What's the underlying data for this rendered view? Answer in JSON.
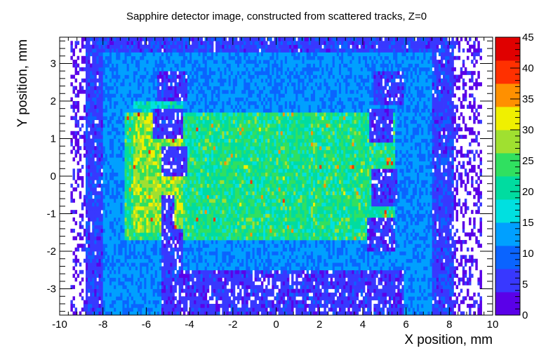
{
  "chart_data": {
    "type": "heatmap",
    "title": "Sapphire detector image, constructed from scattered tracks, Z=0",
    "xlabel": "X position, mm",
    "ylabel": "Y position, mm",
    "xlim": [
      -10,
      10
    ],
    "ylim": [
      -3.7,
      3.7
    ],
    "x_ticks": [
      "-10",
      "-8",
      "-6",
      "-4",
      "-2",
      "0",
      "2",
      "4",
      "6",
      "8",
      "10"
    ],
    "y_ticks": [
      "-3",
      "-2",
      "-1",
      "0",
      "1",
      "2",
      "3"
    ],
    "zlim": [
      0,
      45
    ],
    "z_ticks": [
      "0",
      "5",
      "10",
      "15",
      "20",
      "25",
      "30",
      "35",
      "40",
      "45"
    ],
    "bins": {
      "nx": 200,
      "ny": 74
    },
    "data_support_x": [
      -9.5,
      9.5
    ],
    "bands": [
      {
        "region": "outer halo",
        "x": [
          -9.5,
          9.5
        ],
        "y": [
          -3.7,
          3.7
        ],
        "counts": [
          0,
          3
        ]
      },
      {
        "region": "outer frame",
        "x": [
          -8.8,
          8.2
        ],
        "y": [
          -3.7,
          3.7
        ],
        "counts": [
          4,
          9
        ]
      },
      {
        "region": "ring",
        "x": [
          -8.0,
          7.2
        ],
        "y": [
          -3.7,
          3.3
        ],
        "counts": [
          10,
          16
        ]
      },
      {
        "region": "central plateau",
        "x": [
          -7.0,
          5.5
        ],
        "y": [
          -1.7,
          1.7
        ],
        "counts": [
          18,
          28
        ]
      },
      {
        "region": "hot spots",
        "x": [
          -6.6,
          -4.3
        ],
        "y": [
          -1.5,
          2.0
        ],
        "counts": [
          30,
          40
        ]
      }
    ],
    "masked_rectangles": [
      {
        "x": [
          -5.5,
          -4.1
        ],
        "y": [
          2.0,
          2.75
        ]
      },
      {
        "x": [
          -5.7,
          -4.3
        ],
        "y": [
          1.0,
          1.75
        ]
      },
      {
        "x": [
          -5.3,
          -4.1
        ],
        "y": [
          0.0,
          0.75
        ]
      },
      {
        "x": [
          -5.3,
          -4.7
        ],
        "y": [
          -1.6,
          -0.5
        ]
      },
      {
        "x": [
          -5.3,
          -4.3
        ],
        "y": [
          -2.5,
          -1.4
        ]
      },
      {
        "x": [
          -5.3,
          5.9
        ],
        "y": [
          -3.7,
          -2.5
        ]
      },
      {
        "x": [
          4.5,
          5.9
        ],
        "y": [
          1.9,
          2.8
        ]
      },
      {
        "x": [
          4.3,
          5.4
        ],
        "y": [
          0.95,
          1.8
        ]
      },
      {
        "x": [
          4.4,
          5.6
        ],
        "y": [
          -0.8,
          0.15
        ]
      },
      {
        "x": [
          4.2,
          5.5
        ],
        "y": [
          -2.0,
          -1.1
        ]
      }
    ],
    "palette": [
      "#5a00e8",
      "#3838ff",
      "#0a64ff",
      "#00a0ff",
      "#00e0e0",
      "#00dca0",
      "#30e060",
      "#a0e030",
      "#f0f000",
      "#ff9000",
      "#ff3000",
      "#e00000"
    ]
  }
}
